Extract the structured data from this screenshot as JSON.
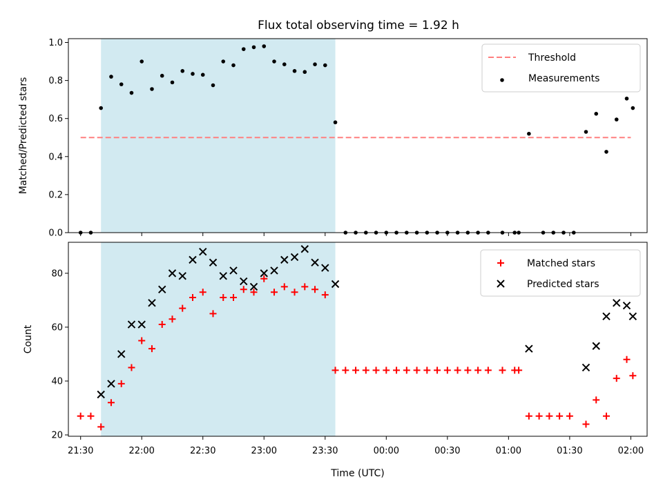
{
  "title": "Flux total observing time = 1.92 h",
  "chart_data": [
    {
      "type": "scatter",
      "ylabel": "Matched/Predicted stars",
      "xlabel": "",
      "xlim": [
        "21:24",
        "02:08"
      ],
      "ylim": [
        0,
        1.02
      ],
      "yticks": [
        "0.0",
        "0.2",
        "0.4",
        "0.6",
        "0.8",
        "1.0"
      ],
      "xticks": [
        "21:30",
        "22:00",
        "22:30",
        "23:00",
        "23:30",
        "00:00",
        "00:30",
        "01:00",
        "01:30",
        "02:00"
      ],
      "shaded_interval": [
        "21:40",
        "23:35"
      ],
      "threshold": {
        "name": "Threshold",
        "value": 0.5,
        "x_from": "21:30",
        "x_to": "02:00",
        "color": "#ff7f7f",
        "style": "dashed"
      },
      "legend": {
        "position": "top-right",
        "entries": [
          "Threshold",
          "Measurements"
        ]
      },
      "series": [
        {
          "name": "Measurements",
          "color": "#000000",
          "marker": "dot",
          "points": [
            [
              "21:30",
              0.0
            ],
            [
              "21:35",
              0.0
            ],
            [
              "21:40",
              0.655
            ],
            [
              "21:45",
              0.82
            ],
            [
              "21:50",
              0.78
            ],
            [
              "21:55",
              0.735
            ],
            [
              "22:00",
              0.9
            ],
            [
              "22:05",
              0.755
            ],
            [
              "22:10",
              0.825
            ],
            [
              "22:15",
              0.79
            ],
            [
              "22:20",
              0.85
            ],
            [
              "22:25",
              0.835
            ],
            [
              "22:30",
              0.83
            ],
            [
              "22:35",
              0.775
            ],
            [
              "22:40",
              0.9
            ],
            [
              "22:45",
              0.88
            ],
            [
              "22:50",
              0.965
            ],
            [
              "22:55",
              0.975
            ],
            [
              "23:00",
              0.98
            ],
            [
              "23:05",
              0.9
            ],
            [
              "23:10",
              0.885
            ],
            [
              "23:15",
              0.85
            ],
            [
              "23:20",
              0.845
            ],
            [
              "23:25",
              0.885
            ],
            [
              "23:30",
              0.88
            ],
            [
              "23:35",
              0.58
            ],
            [
              "23:40",
              0.0
            ],
            [
              "23:45",
              0.0
            ],
            [
              "23:50",
              0.0
            ],
            [
              "23:55",
              0.0
            ],
            [
              "00:00",
              0.0
            ],
            [
              "00:05",
              0.0
            ],
            [
              "00:10",
              0.0
            ],
            [
              "00:15",
              0.0
            ],
            [
              "00:20",
              0.0
            ],
            [
              "00:25",
              0.0
            ],
            [
              "00:30",
              0.0
            ],
            [
              "00:35",
              0.0
            ],
            [
              "00:40",
              0.0
            ],
            [
              "00:45",
              0.0
            ],
            [
              "00:50",
              0.0
            ],
            [
              "00:57",
              0.0
            ],
            [
              "01:03",
              0.0
            ],
            [
              "01:05",
              0.0
            ],
            [
              "01:10",
              0.52
            ],
            [
              "01:17",
              0.0
            ],
            [
              "01:22",
              0.0
            ],
            [
              "01:27",
              0.0
            ],
            [
              "01:32",
              0.0
            ],
            [
              "01:38",
              0.53
            ],
            [
              "01:43",
              0.625
            ],
            [
              "01:48",
              0.425
            ],
            [
              "01:53",
              0.595
            ],
            [
              "01:58",
              0.705
            ],
            [
              "02:01",
              0.655
            ]
          ]
        }
      ]
    },
    {
      "type": "scatter",
      "ylabel": "Count",
      "xlabel": "Time (UTC)",
      "xlim": [
        "21:24",
        "02:08"
      ],
      "ylim": [
        19.5,
        91.5
      ],
      "yticks": [
        "20",
        "40",
        "60",
        "80"
      ],
      "xticks": [
        "21:30",
        "22:00",
        "22:30",
        "23:00",
        "23:30",
        "00:00",
        "00:30",
        "01:00",
        "01:30",
        "02:00"
      ],
      "shaded_interval": [
        "21:40",
        "23:35"
      ],
      "legend": {
        "position": "top-right",
        "entries": [
          "Matched stars",
          "Predicted stars"
        ]
      },
      "series": [
        {
          "name": "Matched stars",
          "color": "#ff0000",
          "marker": "plus",
          "points": [
            [
              "21:30",
              27
            ],
            [
              "21:35",
              27
            ],
            [
              "21:40",
              23
            ],
            [
              "21:45",
              32
            ],
            [
              "21:50",
              39
            ],
            [
              "21:55",
              45
            ],
            [
              "22:00",
              55
            ],
            [
              "22:05",
              52
            ],
            [
              "22:10",
              61
            ],
            [
              "22:15",
              63
            ],
            [
              "22:20",
              67
            ],
            [
              "22:25",
              71
            ],
            [
              "22:30",
              73
            ],
            [
              "22:35",
              65
            ],
            [
              "22:40",
              71
            ],
            [
              "22:45",
              71
            ],
            [
              "22:50",
              74
            ],
            [
              "22:55",
              73
            ],
            [
              "23:00",
              78
            ],
            [
              "23:05",
              73
            ],
            [
              "23:10",
              75
            ],
            [
              "23:15",
              73
            ],
            [
              "23:20",
              75
            ],
            [
              "23:25",
              74
            ],
            [
              "23:30",
              72
            ],
            [
              "23:35",
              44
            ],
            [
              "23:40",
              44
            ],
            [
              "23:45",
              44
            ],
            [
              "23:50",
              44
            ],
            [
              "23:55",
              44
            ],
            [
              "00:00",
              44
            ],
            [
              "00:05",
              44
            ],
            [
              "00:10",
              44
            ],
            [
              "00:15",
              44
            ],
            [
              "00:20",
              44
            ],
            [
              "00:25",
              44
            ],
            [
              "00:30",
              44
            ],
            [
              "00:35",
              44
            ],
            [
              "00:40",
              44
            ],
            [
              "00:45",
              44
            ],
            [
              "00:50",
              44
            ],
            [
              "00:57",
              44
            ],
            [
              "01:03",
              44
            ],
            [
              "01:05",
              44
            ],
            [
              "01:10",
              27
            ],
            [
              "01:15",
              27
            ],
            [
              "01:20",
              27
            ],
            [
              "01:25",
              27
            ],
            [
              "01:30",
              27
            ],
            [
              "01:38",
              24
            ],
            [
              "01:43",
              33
            ],
            [
              "01:48",
              27
            ],
            [
              "01:53",
              41
            ],
            [
              "01:58",
              48
            ],
            [
              "02:01",
              42
            ]
          ]
        },
        {
          "name": "Predicted stars",
          "color": "#000000",
          "marker": "x",
          "points": [
            [
              "21:40",
              35
            ],
            [
              "21:45",
              39
            ],
            [
              "21:50",
              50
            ],
            [
              "21:55",
              61
            ],
            [
              "22:00",
              61
            ],
            [
              "22:05",
              69
            ],
            [
              "22:10",
              74
            ],
            [
              "22:15",
              80
            ],
            [
              "22:20",
              79
            ],
            [
              "22:25",
              85
            ],
            [
              "22:30",
              88
            ],
            [
              "22:35",
              84
            ],
            [
              "22:40",
              79
            ],
            [
              "22:45",
              81
            ],
            [
              "22:50",
              77
            ],
            [
              "22:55",
              75
            ],
            [
              "23:00",
              80
            ],
            [
              "23:05",
              81
            ],
            [
              "23:10",
              85
            ],
            [
              "23:15",
              86
            ],
            [
              "23:20",
              89
            ],
            [
              "23:25",
              84
            ],
            [
              "23:30",
              82
            ],
            [
              "23:35",
              76
            ],
            [
              "01:10",
              52
            ],
            [
              "01:38",
              45
            ],
            [
              "01:43",
              53
            ],
            [
              "01:48",
              64
            ],
            [
              "01:53",
              69
            ],
            [
              "01:58",
              68
            ],
            [
              "02:01",
              64
            ]
          ]
        }
      ]
    }
  ]
}
